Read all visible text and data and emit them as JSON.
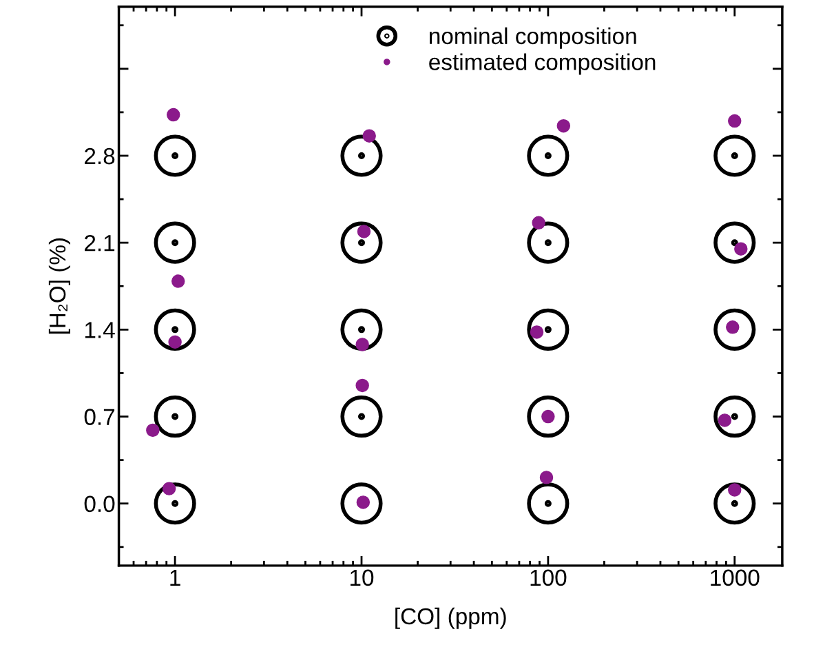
{
  "chart_data": {
    "type": "scatter",
    "xlabel": "[CO] (ppm)",
    "ylabel": "[H₂O] (%)",
    "log": "x",
    "xlim": [
      0.5,
      1800
    ],
    "xticks": [
      1,
      10,
      100,
      1000
    ],
    "ylim": [
      -0.5,
      4.0
    ],
    "yticks": [
      {
        "value": 0.0,
        "label": "0.0"
      },
      0.7,
      1.4,
      2.1,
      2.8,
      {
        "value": 3.5,
        "label": null
      }
    ],
    "grid": false,
    "legend": "top",
    "series": [
      {
        "name": "nominal composition",
        "color": "#000000",
        "marker": "circle",
        "x": [
          1,
          1,
          1,
          1,
          1,
          10,
          10,
          10,
          10,
          10,
          100,
          100,
          100,
          100,
          100,
          1000,
          1000,
          1000,
          1000,
          1000
        ],
        "values": [
          0.0,
          0.7,
          1.4,
          2.1,
          2.8,
          0.0,
          0.7,
          1.4,
          2.1,
          2.8,
          0.0,
          0.7,
          1.4,
          2.1,
          2.8,
          0.0,
          0.7,
          1.4,
          2.1,
          2.8
        ]
      },
      {
        "name": "estimated composition",
        "color": "#8b1a8b",
        "marker": "circle",
        "x": [
          0.98,
          1.04,
          1.0,
          0.76,
          0.93,
          11,
          10.3,
          10.1,
          10.1,
          10.2,
          121,
          89,
          87,
          100,
          98,
          1000,
          1080,
          975,
          885,
          1000
        ],
        "values": [
          3.13,
          1.79,
          1.3,
          0.59,
          0.12,
          2.96,
          2.19,
          1.28,
          0.95,
          0.01,
          3.04,
          2.26,
          1.38,
          0.7,
          0.21,
          3.08,
          2.05,
          1.42,
          0.67,
          0.11
        ]
      }
    ]
  }
}
